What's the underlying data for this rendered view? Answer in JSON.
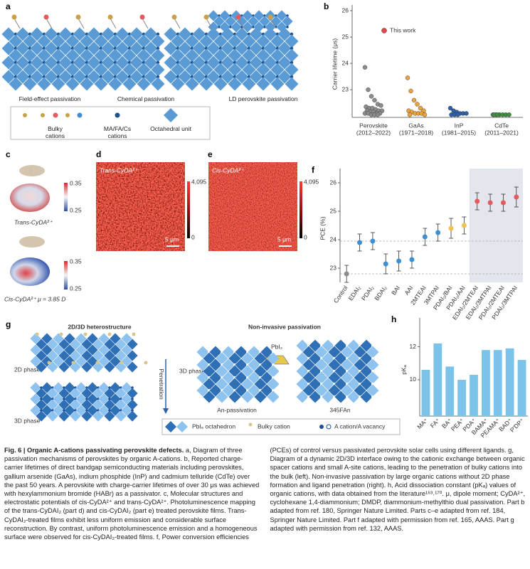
{
  "panel_a": {
    "label": "a",
    "mechanisms": [
      "Field-effect passivation",
      "Chemical passivation",
      "LD perovskite passivation"
    ],
    "legend": [
      "Bulky cations",
      "MA/FA/Cs cations",
      "Octahedral unit"
    ]
  },
  "panel_c": {
    "label": "c",
    "scale_max": "0.35",
    "scale_min": "0.25",
    "trans": "Trans-CyDA²⁺",
    "cis": "Cis-CyDA²⁺ μ = 3.85 D"
  },
  "panel_d": {
    "label": "d",
    "title": "Trans-CyDA²⁺",
    "scale_max": "4,095",
    "scale_min": "0",
    "scale_bar": "5 μm"
  },
  "panel_e": {
    "label": "e",
    "title": "Cis-CyDA²⁺",
    "scale_max": "4,095",
    "scale_min": "0",
    "scale_bar": "5 μm"
  },
  "panel_g": {
    "label": "g",
    "left_title": "2D/3D heterostructure",
    "right_title": "Non-invasive passivation",
    "phase_2d": "2D phase",
    "phase_3d": "3D phase",
    "penetration": "Penetration",
    "phase_3d_right": "3D phase",
    "pbi2": "PbI₂",
    "an": "An-passivation",
    "fan": "345FAn",
    "legend": [
      "PbI₆ octahedron",
      "Bulky  cation",
      "A cation/A vacancy"
    ]
  },
  "chart_data": [
    {
      "type": "strip",
      "panel": "b",
      "y_label": "Carrier lifetime (μs)",
      "categories": [
        "Perovskite",
        "GaAs",
        "InP",
        "CdTe"
      ],
      "periods": [
        "(2012–2022)",
        "(1971–2018)",
        "(1981–2015)",
        "(2011–2021)"
      ],
      "colors": [
        "#8c8c8c",
        "#e8a33a",
        "#2f5fa8",
        "#3f8f3f"
      ],
      "values": [
        [
          23.85,
          23.0,
          22.75,
          22.6,
          22.45,
          22.4,
          22.35,
          22.3,
          22.3,
          22.25,
          22.2,
          22.2,
          22.2,
          22.15,
          22.15,
          22.1,
          22.1,
          22.1,
          22.1,
          22.05,
          22.05,
          22.05
        ],
        [
          23.45,
          22.95,
          22.6,
          22.45,
          22.3,
          22.2,
          22.2,
          22.15,
          22.1,
          22.1,
          22.1,
          22.05,
          22.05
        ],
        [
          22.3,
          22.2,
          22.15,
          22.1,
          22.1,
          22.1,
          22.05,
          22.05,
          22.05
        ],
        [
          22.05,
          22.05,
          22.05,
          22.05,
          22.05,
          22.05,
          22.05,
          22.05
        ]
      ],
      "legend": {
        "label": "This work",
        "color": "#e0474c"
      },
      "ylim": [
        21.95,
        26
      ],
      "yticks": [
        23,
        24,
        25,
        26
      ]
    },
    {
      "type": "errorbar",
      "panel": "f",
      "y_label": "PCE (%)",
      "categories": [
        "Control",
        "EDAI₂",
        "PDAI₂",
        "BDAI₂",
        "BAI",
        "AAI",
        "2MTEAI",
        "3MTPAI",
        "PDAI₂/BAI",
        "PDAI₂/AAI",
        "EDAI₂/2MTEAI",
        "EDAI₂/3MTPAI",
        "PDAI₂/2MTEAI",
        "PDAI₂/3MTPAI"
      ],
      "values": [
        22.8,
        23.9,
        23.95,
        23.15,
        23.25,
        23.3,
        24.1,
        24.25,
        24.4,
        24.5,
        25.35,
        25.3,
        25.3,
        25.5
      ],
      "errors": [
        0.3,
        0.3,
        0.3,
        0.35,
        0.35,
        0.3,
        0.3,
        0.3,
        0.35,
        0.3,
        0.3,
        0.3,
        0.3,
        0.35
      ],
      "colors": [
        "#8c8c8c",
        "#3d8fd1",
        "#3d8fd1",
        "#3d8fd1",
        "#3d8fd1",
        "#3d8fd1",
        "#3d8fd1",
        "#3d8fd1",
        "#f2c14e",
        "#f2c14e",
        "#e35b5f",
        "#e35b5f",
        "#e35b5f",
        "#e35b5f"
      ],
      "reference_lines": [
        23.95,
        22.8
      ],
      "shaded_from": 10,
      "ylim": [
        22.5,
        26.3
      ],
      "yticks": [
        23,
        24,
        25,
        26
      ]
    },
    {
      "type": "bar",
      "panel": "h",
      "y_label": "pKₐ",
      "categories": [
        "MA⁺",
        "FA⁺",
        "BA⁺",
        "PEA⁺",
        "PDA⁺",
        "BAMA⁺",
        "PEAMA⁺",
        "BAD⁺",
        "P'DP⁺"
      ],
      "values": [
        10.6,
        12.2,
        10.8,
        10.0,
        10.3,
        11.8,
        11.8,
        11.9,
        11.2
      ],
      "color": "#7cc3ea",
      "ylim": [
        7.8,
        13.4
      ],
      "yticks": [
        10,
        12
      ]
    }
  ],
  "caption": {
    "title": "Fig. 6 | Organic A-cations passivating perovskite defects.",
    "body": "a, Diagram of three passivation mechanisms of perovskites by organic A-cations. b, Reported charge-carrier lifetimes of direct bandgap semiconducting materials including perovskites, gallium arsenide (GaAs), indium phosphide (InP) and cadmium telluride (CdTe) over the past 50 years. A perovskite with charge-carrier lifetimes of over 30 μs was achieved with hexylammonium bromide (HABr) as a passivator. c, Molecular structures and electrostatic potentials of cis-CyDA²⁺ and trans-CyDA²⁺. Photoluminescence mapping of the trans-CyDAI₂ (part d) and cis-CyDAI₂ (part e) treated perovskite films. Trans-CyDAI₂-treated films exhibit less uniform emission and considerable surface reconstruction. By contrast, uniform photoluminescence emission and a homogeneous surface were observed for cis-CyDAI₂-treated films. f, Power conversion efficiencies (PCEs) of control versus passivated perovskite solar cells using different ligands. g, Diagram of a dynamic 2D/3D interface owing to the cationic exchange between organic spacer cations and small A-site cations, leading to the penetration of bulky cations into the bulk (left). Non-invasive passivation by large organic cations without 2D phase formation and ligand penetration (right). h, Acid dissociation constant (pKₐ) values of organic cations, with data obtained from the literature¹⁶³˒¹⁷⁰. μ, dipole moment; CyDA²⁺, cyclohexane 1,4-diammonium; DMDP, diammonium-methylthio dual passivation. Part b adapted from ref. 180, Springer Nature Limited. Parts c–e adapted from ref. 184, Springer Nature Limited. Part f adapted with permission from ref. 165, AAAS. Part g adapted with permission from ref. 132, AAAS."
  }
}
